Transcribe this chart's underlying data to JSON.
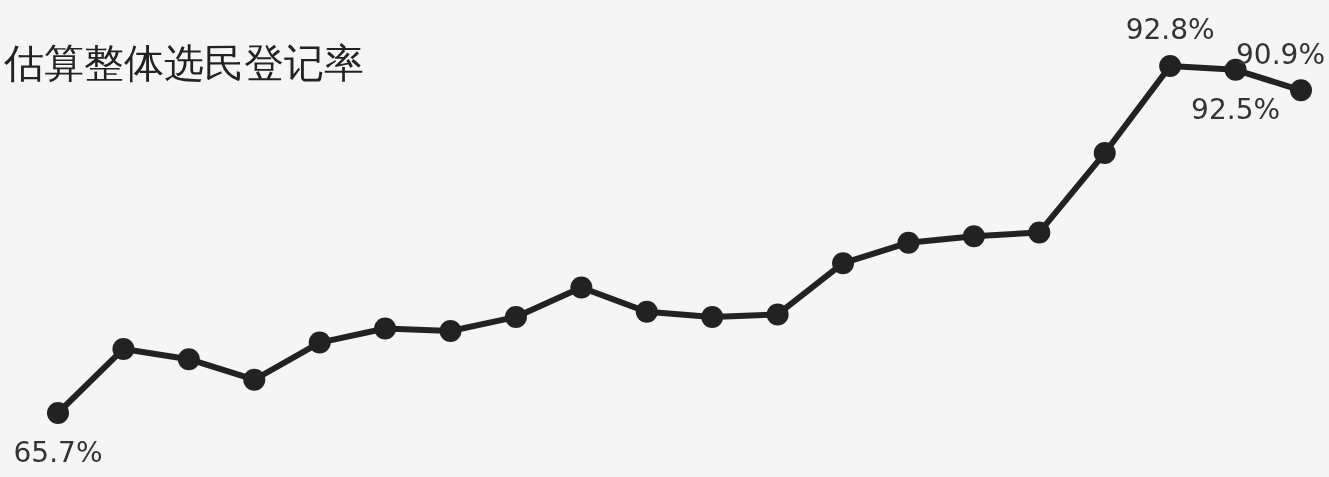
{
  "chart_data": {
    "type": "line",
    "title": "估算整体选民登记率",
    "categories": [
      null,
      null,
      null,
      null,
      null,
      null,
      null,
      null,
      null,
      null,
      null,
      null,
      null,
      null,
      null,
      null,
      null,
      null,
      null,
      null
    ],
    "series": [
      {
        "color": "#222222",
        "values": [
          65.7,
          70.7,
          69.9,
          68.3,
          71.2,
          72.3,
          72.1,
          73.2,
          75.5,
          73.6,
          73.2,
          73.4,
          77.4,
          79.0,
          79.5,
          79.8,
          86.0,
          92.8,
          92.5,
          90.9
        ],
        "value_labels": [
          "65.7%",
          null,
          null,
          null,
          null,
          null,
          null,
          null,
          null,
          null,
          null,
          null,
          null,
          null,
          null,
          null,
          null,
          "92.8%",
          "92.5%",
          "90.9%"
        ]
      }
    ],
    "marker": "circle",
    "line_style": "solid",
    "grid": false,
    "legend": false,
    "tick_labels": false
  }
}
